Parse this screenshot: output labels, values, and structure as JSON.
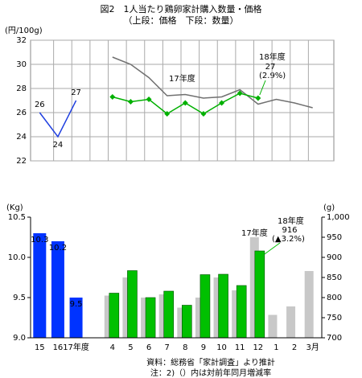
{
  "chart_data": [
    {
      "type": "line",
      "title": "図2　1人当たり鶏卵家計購入数量・価格",
      "subtitle": "（上段：価格　下段：数量）",
      "y_label": "(円/100g)",
      "ylim": [
        22,
        32
      ],
      "yticks": [
        22,
        24,
        26,
        28,
        30,
        32
      ],
      "series": [
        {
          "color": "#2040e0",
          "values": [
            26,
            24,
            27,
            null,
            null,
            null,
            null,
            null,
            null,
            null,
            null,
            null,
            null,
            null,
            null,
            null
          ]
        },
        {
          "color": "#707070",
          "values": [
            null,
            null,
            null,
            null,
            30.6,
            30.0,
            28.9,
            27.4,
            27.5,
            27.2,
            27.3,
            27.9,
            26.7,
            27.1,
            26.8,
            26.4
          ]
        },
        {
          "color": "#00b000",
          "values": [
            null,
            null,
            null,
            null,
            27.3,
            26.9,
            27.1,
            25.9,
            26.8,
            25.9,
            26.8,
            27.6,
            27.2,
            null,
            null,
            null
          ],
          "value_labels": [
            null,
            null,
            null,
            null,
            null,
            null,
            null,
            null,
            null,
            null,
            null,
            null,
            "27",
            null,
            null,
            null
          ]
        }
      ],
      "annotations": [
        "17年度",
        "18年度",
        "(2.9%)"
      ]
    },
    {
      "type": "bar",
      "y_label": "(Kg)",
      "y2_label": "(g)",
      "categories": [
        "15",
        "16",
        "17年度",
        null,
        "4",
        "5",
        "6",
        "7",
        "8",
        "9",
        "10",
        "11",
        "12",
        "1",
        "2",
        "3月"
      ],
      "ylim": [
        9,
        10.5
      ],
      "yticks": [
        {
          "value": 9,
          "label": "9.0"
        },
        9.5,
        {
          "value": 10,
          "label": "10.0"
        },
        10.5
      ],
      "y2lim": [
        700,
        1000
      ],
      "y2ticks": [
        700,
        750,
        800,
        850,
        900,
        950,
        {
          "value": 1000,
          "label": "1,000"
        }
      ],
      "series": [
        {
          "color": "#0033ff",
          "values": [
            10.3,
            10.2,
            9.5,
            null,
            null,
            null,
            null,
            null,
            null,
            null,
            null,
            null,
            null,
            null,
            null,
            null
          ]
        },
        {
          "color": "#c8c8c8",
          "axis": "y2",
          "values": [
            null,
            null,
            null,
            null,
            805,
            850,
            800,
            808,
            775,
            800,
            850,
            818,
            950,
            757,
            778,
            866
          ]
        },
        {
          "color": "#00c000",
          "axis": "y2",
          "values": [
            null,
            null,
            null,
            null,
            811,
            867,
            800,
            816,
            781,
            857,
            858,
            830,
            916,
            null,
            null,
            null
          ]
        }
      ],
      "annotations": [
        "17年度",
        "18年度",
        "(▲3.2%)"
      ],
      "notes": [
        "資料：総務省「家計調査」より推計",
        "注：2)（）内は対前年同月増減率"
      ]
    }
  ]
}
